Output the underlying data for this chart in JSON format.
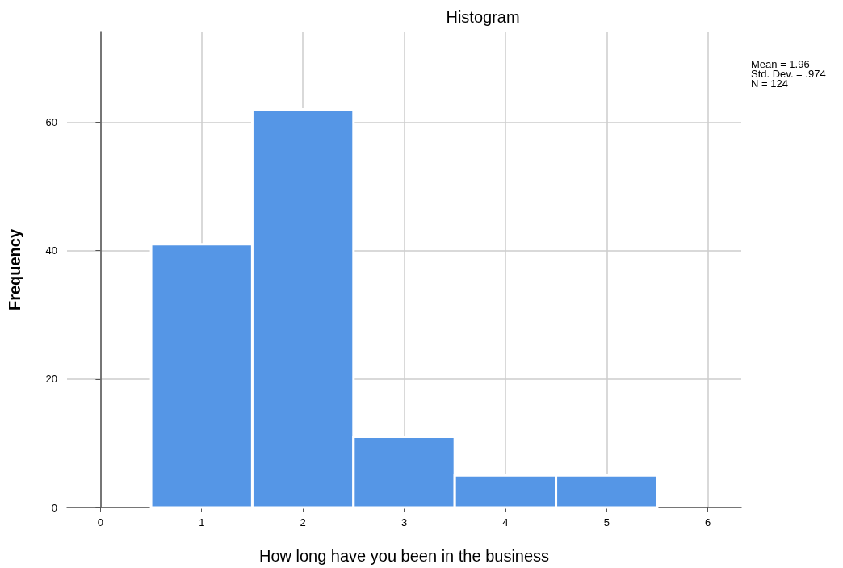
{
  "chart_data": {
    "type": "histogram",
    "title": "Histogram",
    "xlabel": "How long have you been in the business",
    "ylabel": "Frequency",
    "bins": [
      0.5,
      1.5,
      2.5,
      3.5,
      4.5,
      5.5
    ],
    "values": [
      41,
      62,
      11,
      5,
      5
    ],
    "color": "#5596e6",
    "xlim": [
      -0.33,
      6.33
    ],
    "xticks": [
      0,
      1,
      2,
      3,
      4,
      5,
      6
    ],
    "ylim": [
      0,
      74
    ],
    "yticks": [
      0,
      20,
      40,
      60
    ],
    "grid": true,
    "annotations": [
      "Mean = 1.96",
      "Std. Dev. = .974",
      "N = 124"
    ]
  }
}
